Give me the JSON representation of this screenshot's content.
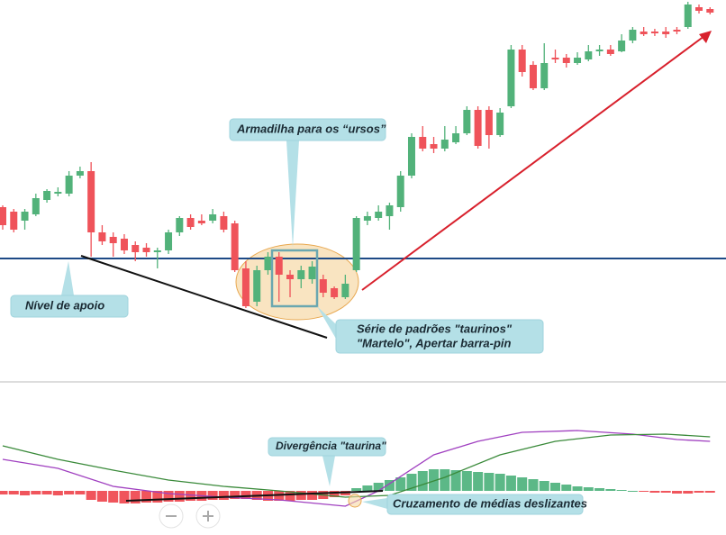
{
  "chart_data": [
    {
      "type": "candlestick",
      "open": [
        190,
        185,
        175,
        182,
        198,
        205,
        205,
        225,
        230,
        162,
        157,
        155,
        148,
        145,
        140,
        142,
        162,
        178,
        175,
        175,
        180,
        172,
        122,
        85,
        120,
        135,
        115,
        110,
        110,
        110,
        100,
        90,
        120,
        175,
        178,
        180,
        190,
        225,
        268,
        260,
        255,
        262,
        272,
        298,
        298,
        270,
        302,
        365,
        348,
        322,
        356,
        356,
        350,
        354,
        363,
        365,
        363,
        375,
        385,
        385,
        385,
        387,
        390,
        412,
        410
      ],
      "high": [
        192,
        188,
        188,
        205,
        210,
        212,
        230,
        235,
        240,
        170,
        162,
        160,
        152,
        150,
        145,
        165,
        180,
        182,
        182,
        188,
        185,
        175,
        130,
        125,
        140,
        140,
        120,
        125,
        130,
        115,
        102,
        115,
        180,
        185,
        192,
        195,
        230,
        272,
        280,
        268,
        280,
        280,
        302,
        302,
        302,
        300,
        370,
        370,
        352,
        372,
        365,
        360,
        362,
        370,
        370,
        370,
        382,
        390,
        390,
        388,
        390,
        390,
        418,
        415,
        412
      ],
      "low": [
        165,
        162,
        165,
        180,
        195,
        202,
        202,
        222,
        135,
        148,
        135,
        138,
        130,
        135,
        122,
        138,
        158,
        165,
        170,
        172,
        162,
        118,
        78,
        80,
        115,
        85,
        90,
        100,
        105,
        90,
        88,
        88,
        118,
        170,
        175,
        165,
        185,
        222,
        252,
        250,
        252,
        260,
        270,
        255,
        255,
        268,
        300,
        335,
        320,
        320,
        350,
        345,
        348,
        352,
        358,
        358,
        362,
        372,
        380,
        380,
        378,
        382,
        388,
        405,
        404
      ],
      "close": [
        170,
        165,
        185,
        200,
        208,
        207,
        225,
        230,
        162,
        152,
        150,
        142,
        140,
        140,
        142,
        162,
        178,
        168,
        172,
        182,
        165,
        120,
        80,
        120,
        135,
        115,
        110,
        120,
        124,
        95,
        90,
        105,
        178,
        180,
        185,
        192,
        225,
        268,
        255,
        255,
        265,
        272,
        298,
        258,
        270,
        295,
        365,
        340,
        322,
        350,
        354,
        350,
        356,
        363,
        365,
        360,
        375,
        387,
        382,
        383,
        382,
        385,
        415,
        408,
        406
      ],
      "up_color": "#52b27a",
      "down_color": "#ef535a",
      "ylim": [
        0,
        420
      ],
      "support_level": 133,
      "support_color": "#1d4a86",
      "annotations": [
        "Armadilha para os “ursos”",
        "Nível de apoio",
        "Série de padrões \"taurinos\"",
        "\"Martelo\", Apertar barra-pin"
      ]
    },
    {
      "type": "macd",
      "histogram": [
        -4,
        -4,
        -5,
        -4,
        -4,
        -5,
        -4,
        -4,
        -10,
        -12,
        -13,
        -14,
        -14,
        -13,
        -13,
        -12,
        -12,
        -11,
        -11,
        -10,
        -10,
        -9,
        -9,
        -10,
        -11,
        -11,
        -11,
        -10,
        -10,
        -9,
        -7,
        -5,
        3,
        6,
        9,
        12,
        15,
        19,
        22,
        24,
        24,
        23,
        22,
        21,
        20,
        19,
        17,
        15,
        13,
        11,
        9,
        7,
        5,
        4,
        3,
        2,
        1,
        0,
        -1,
        -2,
        -2,
        -3,
        -3,
        -2,
        -2
      ],
      "up_color": "#5cb887",
      "down_color": "#f0555c",
      "ylim": [
        -49,
        120
      ],
      "series": [
        {
          "color": "#a040c0",
          "x": [
            0,
            5,
            10,
            15,
            20,
            25,
            31,
            34,
            39,
            43,
            47,
            52,
            57,
            61,
            64
          ],
          "values": [
            35,
            25,
            5,
            -3,
            -7,
            -10,
            -17,
            0,
            40,
            55,
            65,
            67,
            63,
            57,
            55
          ]
        },
        {
          "color": "#3a8a3a",
          "x": [
            0,
            5,
            10,
            15,
            20,
            25,
            31,
            35,
            40,
            45,
            50,
            55,
            60,
            64
          ],
          "values": [
            50,
            35,
            23,
            12,
            5,
            0,
            -7,
            -5,
            15,
            40,
            55,
            62,
            63,
            60
          ]
        }
      ],
      "annotations": [
        "Divergência \"taurina\"",
        "Cruzamento de médias deslizantes"
      ]
    }
  ]
}
